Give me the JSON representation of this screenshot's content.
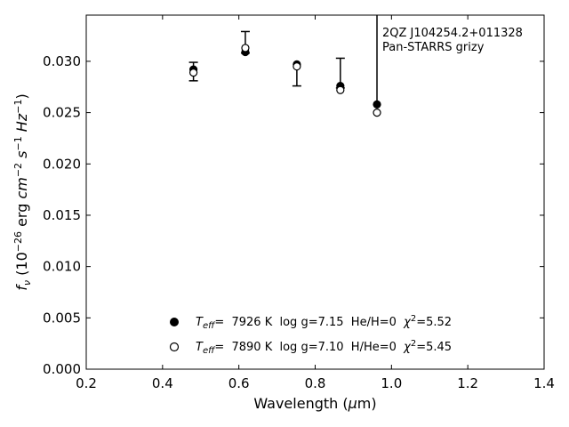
{
  "chart_data": {
    "type": "scatter",
    "annotation": [
      "2QZ J104254.2+011328",
      "Pan-STARRS grizy"
    ],
    "xlabel": "Wavelength (μm)",
    "ylabel": "f_ν (10^-26 erg cm^-2 s^-1 Hz^-1)",
    "xlim": [
      0.2,
      1.4
    ],
    "ylim": [
      0.0,
      0.0345
    ],
    "xticks": [
      "0.2",
      "0.4",
      "0.6",
      "0.8",
      "1.0",
      "1.2",
      "1.4"
    ],
    "yticks": [
      "0.000",
      "0.005",
      "0.010",
      "0.015",
      "0.020",
      "0.025",
      "0.030"
    ],
    "observed": [
      {
        "x": 0.481,
        "y": 0.029,
        "err_low": 0.0009,
        "err_high": 0.0009
      },
      {
        "x": 0.617,
        "y": 0.0313,
        "err_low": 0.0005,
        "err_high": 0.0016
      },
      {
        "x": 0.752,
        "y": 0.0294,
        "err_low": 0.0018,
        "err_high": 0.0
      },
      {
        "x": 0.866,
        "y": 0.0277,
        "err_low": 0.0003,
        "err_high": 0.0026
      },
      {
        "x": 0.962,
        "y": 0.0258,
        "err_low": 0.0,
        "err_high": 0.0087
      }
    ],
    "series": [
      {
        "name": "Teff= 7926 K log g=7.15 He/H=0 χ2=5.52",
        "marker": "filled",
        "x": [
          0.481,
          0.617,
          0.752,
          0.866,
          0.962
        ],
        "y": [
          0.0292,
          0.0309,
          0.0297,
          0.0276,
          0.0258
        ]
      },
      {
        "name": "Teff= 7890 K log g=7.10 H/He=0 χ2=5.45",
        "marker": "open",
        "x": [
          0.481,
          0.617,
          0.752,
          0.866,
          0.962
        ],
        "y": [
          0.0289,
          0.0313,
          0.0295,
          0.0272,
          0.025
        ]
      }
    ],
    "legend": [
      {
        "teff_value": "=  7926 K  log g=7.15  He/H=0  ",
        "chi_value": "=5.52"
      },
      {
        "teff_value": "=  7890 K  log g=7.10  H/He=0  ",
        "chi_value": "=5.45"
      }
    ],
    "legend_position": "bottom-center",
    "grid": false,
    "colors": {
      "marker": "#000000",
      "axes": "#000000",
      "background": "#ffffff"
    }
  }
}
